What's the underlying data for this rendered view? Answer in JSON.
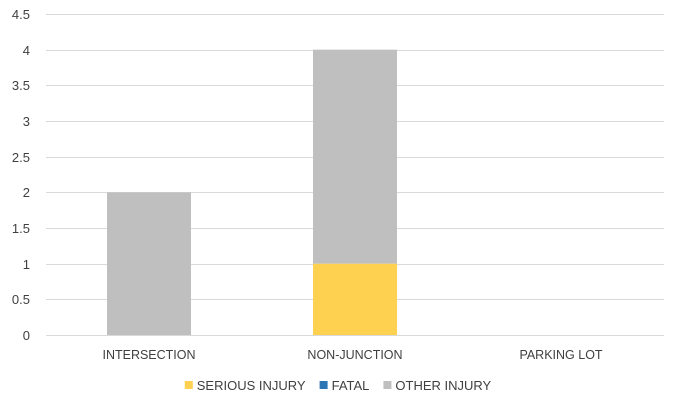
{
  "chart_data": {
    "type": "bar",
    "stacked": true,
    "title": "",
    "xlabel": "",
    "ylabel": "",
    "categories": [
      "INTERSECTION",
      "NON-JUNCTION",
      "PARKING LOT"
    ],
    "series": [
      {
        "name": "SERIOUS INJURY",
        "color": "#FFD150",
        "values": [
          0,
          1,
          0
        ]
      },
      {
        "name": "FATAL",
        "color": "#2E75B6",
        "values": [
          0,
          0,
          0
        ]
      },
      {
        "name": "OTHER INJURY",
        "color": "#BFBFBF",
        "values": [
          2,
          3,
          0
        ]
      }
    ],
    "ylim": [
      0,
      4.5
    ],
    "yticks": [
      "0",
      "0.5",
      "1",
      "1.5",
      "2",
      "2.5",
      "3",
      "3.5",
      "4",
      "4.5"
    ],
    "grid": true,
    "legend_position": "bottom"
  }
}
